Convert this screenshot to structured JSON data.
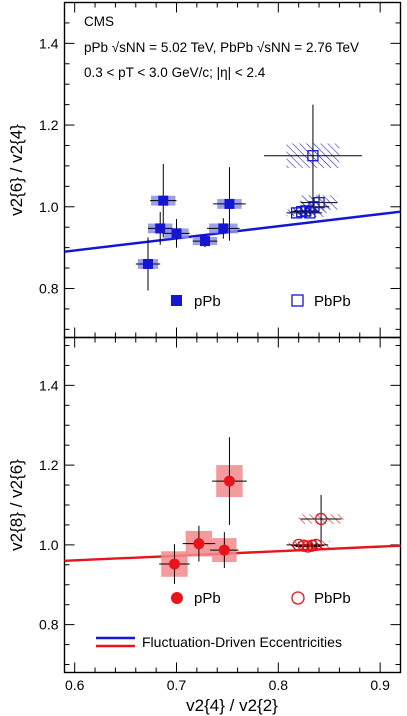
{
  "header": {
    "experiment": "CMS",
    "line1": "pPb √sNN = 5.02 TeV, PbPb √sNN = 2.76 TeV",
    "line2": "0.3 < pT < 3.0 GeV/c; |η| < 2.4"
  },
  "legend_model": "Fluctuation-Driven Eccentricities",
  "colors": {
    "blue": "#1515d6",
    "red": "#e8141c",
    "blue_syst": "#8b8fe6",
    "red_syst": "#f28a8c"
  },
  "chart_data": [
    {
      "type": "scatter",
      "panel": "top",
      "ylabel": "v2{6} / v2{4}",
      "xlim": [
        0.59,
        0.92
      ],
      "ylim": [
        0.68,
        1.5
      ],
      "yticks": [
        0.8,
        1.0,
        1.2,
        1.4
      ],
      "ytick_labels": [
        "0.8",
        "1.0",
        "1.2",
        "1.4"
      ],
      "legend": [
        "pPb",
        "PbPb"
      ],
      "series": [
        {
          "name": "pPb",
          "marker": "filled-square",
          "points": [
            {
              "x": 0.672,
              "y": 0.86,
              "xerr": 0.012,
              "yerr": 0.065,
              "sx": 0.01,
              "sy": 0.012
            },
            {
              "x": 0.684,
              "y": 0.947,
              "xerr": 0.012,
              "yerr": 0.04,
              "sx": 0.012,
              "sy": 0.012
            },
            {
              "x": 0.687,
              "y": 1.015,
              "xerr": 0.013,
              "yerr": 0.09,
              "sx": 0.012,
              "sy": 0.012
            },
            {
              "x": 0.7,
              "y": 0.935,
              "xerr": 0.013,
              "yerr": 0.035,
              "sx": 0.012,
              "sy": 0.012
            },
            {
              "x": 0.728,
              "y": 0.916,
              "xerr": 0.012,
              "yerr": 0.015,
              "sx": 0.012,
              "sy": 0.01
            },
            {
              "x": 0.746,
              "y": 0.947,
              "xerr": 0.016,
              "yerr": 0.025,
              "sx": 0.014,
              "sy": 0.012
            },
            {
              "x": 0.752,
              "y": 1.007,
              "xerr": 0.016,
              "yerr": 0.09,
              "sx": 0.012,
              "sy": 0.012
            }
          ]
        },
        {
          "name": "PbPb",
          "marker": "open-square",
          "points": [
            {
              "x": 0.818,
              "y": 0.985,
              "xerr": 0.01,
              "yerr": 0.008,
              "sx": 0.01,
              "sy": 0.008
            },
            {
              "x": 0.823,
              "y": 0.988,
              "xerr": 0.01,
              "yerr": 0.008,
              "sx": 0.012,
              "sy": 0.008
            },
            {
              "x": 0.827,
              "y": 0.99,
              "xerr": 0.012,
              "yerr": 0.01,
              "sx": 0.012,
              "sy": 0.01
            },
            {
              "x": 0.831,
              "y": 0.985,
              "xerr": 0.012,
              "yerr": 0.01,
              "sx": 0.014,
              "sy": 0.01
            },
            {
              "x": 0.835,
              "y": 1.0,
              "xerr": 0.015,
              "yerr": 0.015,
              "sx": 0.015,
              "sy": 0.015
            },
            {
              "x": 0.84,
              "y": 1.01,
              "xerr": 0.018,
              "yerr": 0.02,
              "sx": 0.018,
              "sy": 0.018
            },
            {
              "x": 0.834,
              "y": 1.125,
              "xerr": 0.048,
              "yerr": 0.125,
              "sx": 0.026,
              "sy": 0.03
            }
          ]
        }
      ],
      "model_curve": {
        "x": [
          0.59,
          0.92
        ],
        "y": [
          0.89,
          0.988
        ]
      }
    },
    {
      "type": "scatter",
      "panel": "bottom",
      "ylabel": "v2{8} / v2{6}",
      "xlabel": "v2{4} / v2{2}",
      "xlim": [
        0.59,
        0.92
      ],
      "ylim": [
        0.68,
        1.52
      ],
      "yticks": [
        0.8,
        1.0,
        1.2,
        1.4
      ],
      "ytick_labels": [
        "0.8",
        "1.0",
        "1.2",
        "1.4"
      ],
      "xticks": [
        0.6,
        0.7,
        0.8,
        0.9
      ],
      "xtick_labels": [
        "0.6",
        "0.7",
        "0.8",
        "0.9"
      ],
      "legend": [
        "pPb",
        "PbPb"
      ],
      "series": [
        {
          "name": "pPb",
          "marker": "filled-circle",
          "points": [
            {
              "x": 0.698,
              "y": 0.952,
              "xerr": 0.015,
              "yerr": 0.05,
              "sx": 0.013,
              "sy": 0.032
            },
            {
              "x": 0.722,
              "y": 1.003,
              "xerr": 0.016,
              "yerr": 0.045,
              "sx": 0.013,
              "sy": 0.032
            },
            {
              "x": 0.747,
              "y": 0.987,
              "xerr": 0.014,
              "yerr": 0.045,
              "sx": 0.012,
              "sy": 0.03
            },
            {
              "x": 0.752,
              "y": 1.16,
              "xerr": 0.017,
              "yerr": 0.11,
              "sx": 0.013,
              "sy": 0.04
            }
          ]
        },
        {
          "name": "PbPb",
          "marker": "open-circle",
          "points": [
            {
              "x": 0.82,
              "y": 1.0,
              "xerr": 0.012,
              "yerr": 0.008,
              "sx": 0.01,
              "sy": 0.008
            },
            {
              "x": 0.825,
              "y": 0.998,
              "xerr": 0.012,
              "yerr": 0.008,
              "sx": 0.012,
              "sy": 0.008
            },
            {
              "x": 0.829,
              "y": 0.996,
              "xerr": 0.012,
              "yerr": 0.008,
              "sx": 0.012,
              "sy": 0.008
            },
            {
              "x": 0.833,
              "y": 0.998,
              "xerr": 0.012,
              "yerr": 0.01,
              "sx": 0.014,
              "sy": 0.01
            },
            {
              "x": 0.837,
              "y": 1.0,
              "xerr": 0.012,
              "yerr": 0.012,
              "sx": 0.014,
              "sy": 0.01
            },
            {
              "x": 0.842,
              "y": 1.065,
              "xerr": 0.02,
              "yerr": 0.06,
              "sx": 0.022,
              "sy": 0.012
            }
          ]
        }
      ],
      "model_curve": {
        "x": [
          0.59,
          0.92
        ],
        "y": [
          0.96,
          0.998
        ]
      }
    }
  ]
}
